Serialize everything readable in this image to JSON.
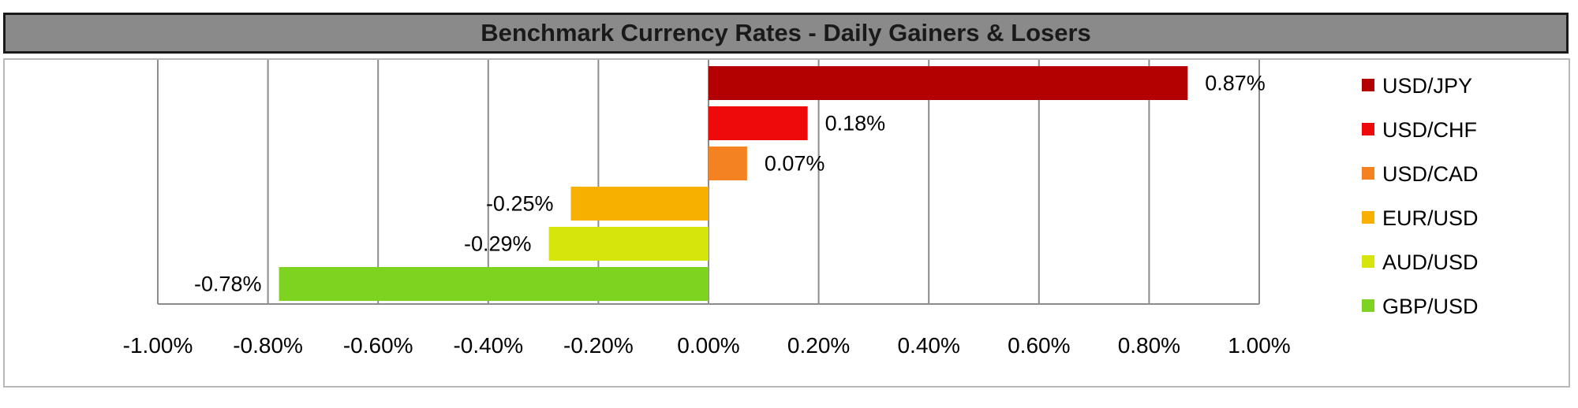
{
  "title": "Benchmark Currency Rates - Daily Gainers & Losers",
  "chart_data": {
    "type": "bar",
    "orientation": "horizontal",
    "title": "Benchmark Currency Rates - Daily Gainers & Losers",
    "xlabel": "",
    "ylabel": "",
    "xlim": [
      -1.0,
      1.0
    ],
    "x_ticks": [
      -1.0,
      -0.8,
      -0.6,
      -0.4,
      -0.2,
      0.0,
      0.2,
      0.4,
      0.6,
      0.8,
      1.0
    ],
    "x_tick_labels": [
      "-1.00%",
      "-0.80%",
      "-0.60%",
      "-0.40%",
      "-0.20%",
      "0.00%",
      "0.20%",
      "0.40%",
      "0.60%",
      "0.80%",
      "1.00%"
    ],
    "grid": "vertical",
    "legend_position": "right",
    "series": [
      {
        "name": "USD/JPY",
        "value": 0.87,
        "label": "0.87%",
        "color": "#b30000"
      },
      {
        "name": "USD/CHF",
        "value": 0.18,
        "label": "0.18%",
        "color": "#ee0a0a"
      },
      {
        "name": "USD/CAD",
        "value": 0.07,
        "label": "0.07%",
        "color": "#f58220"
      },
      {
        "name": "EUR/USD",
        "value": -0.25,
        "label": "-0.25%",
        "color": "#f7b000"
      },
      {
        "name": "AUD/USD",
        "value": -0.29,
        "label": "-0.29%",
        "color": "#d6e60d"
      },
      {
        "name": "GBP/USD",
        "value": -0.78,
        "label": "-0.78%",
        "color": "#7ed321"
      }
    ]
  }
}
